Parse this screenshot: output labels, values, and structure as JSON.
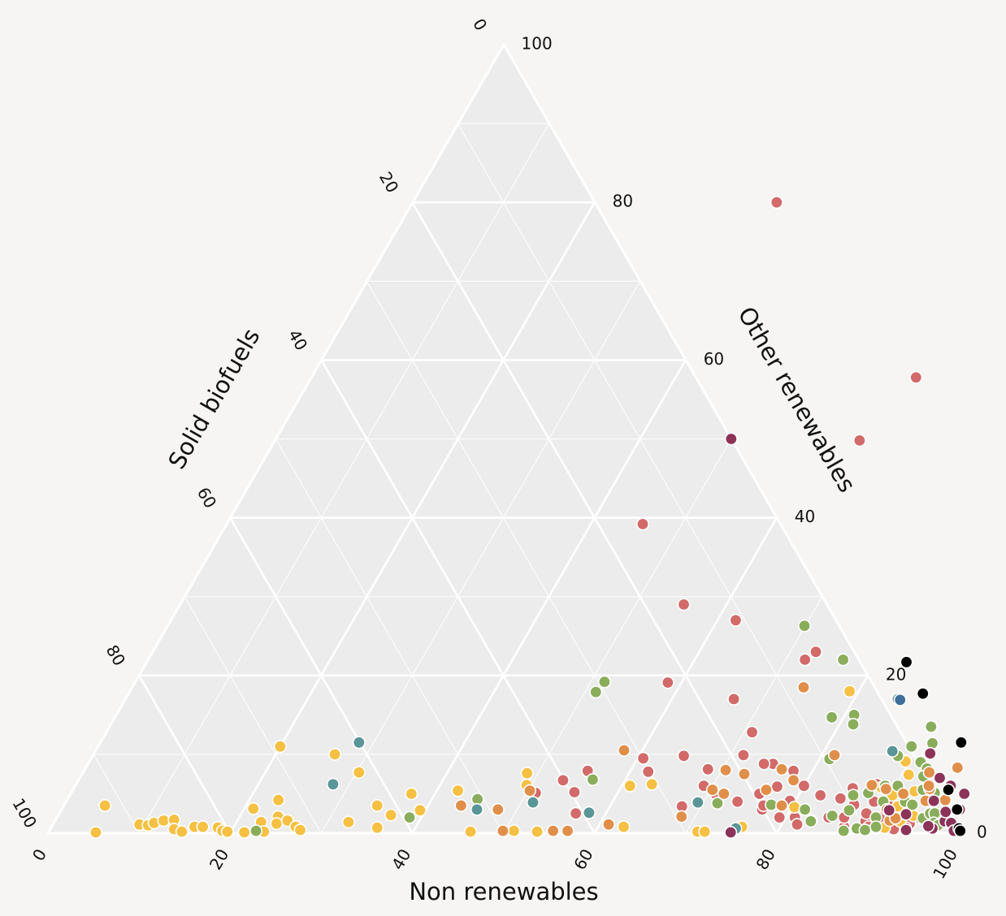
{
  "chart_data": {
    "type": "scatter",
    "subtype": "ternary",
    "title": "",
    "axes": {
      "bottom": {
        "title": "Non renewables",
        "ticks": [
          "0",
          "20",
          "40",
          "60",
          "80",
          "100"
        ]
      },
      "left": {
        "title": "Solid biofuels",
        "ticks": [
          "0",
          "20",
          "40",
          "60",
          "80",
          "100"
        ]
      },
      "right": {
        "title": "Other renewables",
        "ticks": [
          "0",
          "20",
          "40",
          "60",
          "80",
          "100"
        ]
      }
    },
    "point_encoding": [
      "non_renewables",
      "other_renewables"
    ],
    "grid": true,
    "palette": {
      "red": "#d26a6a",
      "yellow": "#f5c043",
      "green": "#8aad5c",
      "orange": "#e08f4a",
      "teal": "#5a9597",
      "plum": "#8c3359",
      "black": "#000000",
      "blue": "#3d6f99"
    },
    "series": [
      {
        "name": "red",
        "color": "#d26a6a",
        "points": [
          [
            40,
            80
          ],
          [
            66.4,
            57.8
          ],
          [
            64.2,
            49.8
          ],
          [
            45.7,
            39.2
          ],
          [
            55.3,
            29.0
          ],
          [
            62.0,
            27.0
          ],
          [
            72.8,
            23.0
          ],
          [
            72.1,
            22.0
          ],
          [
            58.5,
            19.1
          ],
          [
            66.8,
            17.0
          ],
          [
            70.9,
            12.8
          ],
          [
            75.2,
            8.8
          ],
          [
            74.2,
            8.8
          ],
          [
            77.1,
            5.9
          ],
          [
            75.6,
            5.0
          ],
          [
            76.9,
            3.0
          ],
          [
            78.8,
            3.5
          ],
          [
            69.0,
            6.0
          ],
          [
            73.7,
            4.0
          ],
          [
            76.8,
            3.5
          ],
          [
            81.0,
            2.0
          ],
          [
            64.9,
            9.8
          ],
          [
            71.4,
            9.9
          ],
          [
            79.3,
            2.0
          ],
          [
            62.0,
            7.8
          ],
          [
            60.6,
            9.5
          ],
          [
            68.4,
            8.1
          ],
          [
            77.9,
            7.9
          ],
          [
            80.0,
            6.0
          ],
          [
            79.4,
            4.1
          ],
          [
            53.2,
            6.7
          ],
          [
            55.2,
            5.2
          ],
          [
            51.0,
            5.1
          ],
          [
            55.3,
            7.9
          ],
          [
            67.9,
            3.4
          ],
          [
            70.8,
            5.0
          ],
          [
            56.7,
            2.5
          ],
          [
            81.7,
            1.1
          ],
          [
            83.0,
            1.6
          ],
          [
            84.7,
            2.0
          ],
          [
            87.0,
            0.8
          ],
          [
            89.0,
            1.5
          ],
          [
            86.4,
            2.0
          ],
          [
            88.6,
            2.5
          ],
          [
            90.5,
            2.0
          ],
          [
            92.1,
            1.5
          ],
          [
            94.0,
            1.2
          ],
          [
            92.6,
            0.5
          ],
          [
            89.7,
            0.8
          ],
          [
            86.7,
            3.6
          ],
          [
            88.7,
            4.0
          ],
          [
            93.8,
            0.7
          ],
          [
            91.3,
            2.6
          ],
          [
            84.8,
            4.4
          ],
          [
            87.9,
            6.2
          ],
          [
            93.2,
            2.7
          ],
          [
            94.8,
            1.9
          ],
          [
            82.4,
            4.8
          ],
          [
            85.5,
            5.7
          ],
          [
            90.4,
            3.9
          ]
        ]
      },
      {
        "name": "yellow",
        "color": "#f5c043",
        "points": [
          [
            4.5,
            3.5
          ],
          [
            5.2,
            0.1
          ],
          [
            9.5,
            1.1
          ],
          [
            10.5,
            1.0
          ],
          [
            11.0,
            1.3
          ],
          [
            11.9,
            1.6
          ],
          [
            13.0,
            1.7
          ],
          [
            13.6,
            0.5
          ],
          [
            14.6,
            0.2
          ],
          [
            15.7,
            0.8
          ],
          [
            16.6,
            0.8
          ],
          [
            18.3,
            0.7
          ],
          [
            19.0,
            0.3
          ],
          [
            19.6,
            0.2
          ],
          [
            21.0,
            3.1
          ],
          [
            21.5,
            0.1
          ],
          [
            22.7,
            1.4
          ],
          [
            23.6,
            0.2
          ],
          [
            24.2,
            2.1
          ],
          [
            24.5,
            1.2
          ],
          [
            25.5,
            1.6
          ],
          [
            26.8,
            0.8
          ],
          [
            27.5,
            0.4
          ],
          [
            23.2,
            4.2
          ],
          [
            20.0,
            11.0
          ],
          [
            26.5,
            10.0
          ],
          [
            30.3,
            7.7
          ],
          [
            32.3,
            1.4
          ],
          [
            34.4,
            3.5
          ],
          [
            35.8,
            0.7
          ],
          [
            36.5,
            2.3
          ],
          [
            37.4,
            5.0
          ],
          [
            39.4,
            2.9
          ],
          [
            42.3,
            5.4
          ],
          [
            46.3,
            0.2
          ],
          [
            48.8,
            7.6
          ],
          [
            49.5,
            6.1
          ],
          [
            50.0,
            0.2
          ],
          [
            51.0,
            0.3
          ],
          [
            53.6,
            0.2
          ],
          [
            60.9,
            6.0
          ],
          [
            62.8,
            0.8
          ],
          [
            63.2,
            6.2
          ],
          [
            71.2,
            0.2
          ],
          [
            72.0,
            0.2
          ],
          [
            75.8,
            0.8
          ],
          [
            79.0,
            18.0
          ],
          [
            80.3,
            3.3
          ],
          [
            92.8,
            1.5
          ],
          [
            91.5,
            0.7
          ],
          [
            90.3,
            4.8
          ],
          [
            93.9,
            2.2
          ],
          [
            89.6,
            9.1
          ],
          [
            91.6,
            3.4
          ],
          [
            92.5,
            5.3
          ],
          [
            88.6,
            5.8
          ],
          [
            90.8,
            7.4
          ]
        ]
      },
      {
        "name": "green",
        "color": "#8aad5c",
        "points": [
          [
            69.9,
            26.3
          ],
          [
            76.3,
            22.0
          ],
          [
            81.0,
            15.0
          ],
          [
            81.5,
            13.8
          ],
          [
            78.7,
            14.7
          ],
          [
            51.5,
            19.2
          ],
          [
            51.2,
            17.9
          ],
          [
            56.4,
            6.8
          ],
          [
            45.0,
            4.3
          ],
          [
            38.7,
            2.0
          ],
          [
            22.7,
            0.3
          ],
          [
            77.6,
            3.6
          ],
          [
            81.1,
            9.4
          ],
          [
            81.6,
            3.0
          ],
          [
            86.0,
            4.8
          ],
          [
            87.5,
            5.1
          ],
          [
            90.3,
            6.0
          ],
          [
            86.5,
            2.9
          ],
          [
            88.4,
            9.8
          ],
          [
            89.3,
            11.0
          ],
          [
            90.2,
            13.5
          ],
          [
            91.4,
            11.4
          ],
          [
            91.3,
            9.0
          ],
          [
            92.4,
            8.2
          ],
          [
            92.1,
            4.0
          ],
          [
            93.1,
            3.6
          ],
          [
            93.3,
            5.5
          ],
          [
            94.8,
            5.1
          ],
          [
            95.1,
            1.9
          ],
          [
            95.6,
            2.5
          ],
          [
            96.1,
            2.5
          ],
          [
            96.6,
            1.3
          ],
          [
            97.2,
            1.0
          ],
          [
            88.9,
            6.0
          ],
          [
            89.9,
            2.0
          ],
          [
            87.2,
            0.3
          ],
          [
            88.5,
            0.6
          ],
          [
            89.5,
            0.4
          ],
          [
            90.5,
            0.8
          ],
          [
            89.7,
            4.0
          ],
          [
            85.0,
            2.2
          ],
          [
            92.5,
            7.2
          ],
          [
            83.0,
            1.5
          ],
          [
            71.6,
            3.8
          ]
        ]
      },
      {
        "name": "orange",
        "color": "#e08f4a",
        "points": [
          [
            83.4,
            21.7
          ],
          [
            73.7,
            18.5
          ],
          [
            76.5,
            8.1
          ],
          [
            81.4,
            9.9
          ],
          [
            78.5,
            6.7
          ],
          [
            76.1,
            5.5
          ],
          [
            78.8,
            3.5
          ],
          [
            71.7,
            5.0
          ],
          [
            70.2,
            5.5
          ],
          [
            68.5,
            2.1
          ],
          [
            72.7,
            7.5
          ],
          [
            70.4,
            8.0
          ],
          [
            58.0,
            10.5
          ],
          [
            55.3,
            0.3
          ],
          [
            56.9,
            0.3
          ],
          [
            49.8,
            0.3
          ],
          [
            61.0,
            1.1
          ],
          [
            50.2,
            5.4
          ],
          [
            47.9,
            3.0
          ],
          [
            43.6,
            3.5
          ],
          [
            89.2,
            5.6
          ],
          [
            87.4,
            6.1
          ],
          [
            95.7,
            8.3
          ],
          [
            92.9,
            7.7
          ],
          [
            94.0,
            5.6
          ],
          [
            91.4,
            5.0
          ],
          [
            90.6,
            3.0
          ],
          [
            91.6,
            1.6
          ],
          [
            92.1,
            1.9
          ],
          [
            96.4,
            4.2
          ],
          [
            93.7,
            6.0
          ],
          [
            94.3,
            4.1
          ]
        ]
      },
      {
        "name": "teal",
        "color": "#5a9597",
        "points": [
          [
            28.4,
            11.5
          ],
          [
            28.2,
            6.2
          ],
          [
            51.3,
            3.9
          ],
          [
            45.6,
            3.0
          ],
          [
            58.1,
            2.6
          ],
          [
            69.4,
            3.9
          ],
          [
            75.2,
            0.6
          ],
          [
            87.5,
            10.4
          ],
          [
            84.8,
            17.0
          ]
        ]
      },
      {
        "name": "plum",
        "color": "#8c3359",
        "points": [
          [
            50.0,
            50.0
          ],
          [
            74.9,
            0.1
          ],
          [
            91.8,
            10.1
          ],
          [
            94.4,
            7.0
          ],
          [
            96.1,
            6.0
          ],
          [
            98.1,
            5.0
          ],
          [
            98.6,
            3.0
          ],
          [
            97.7,
            1.5
          ],
          [
            96.8,
            0.6
          ],
          [
            98.5,
            1.3
          ],
          [
            99.3,
            0.3
          ],
          [
            97.2,
            2.7
          ],
          [
            95.2,
            4.1
          ],
          [
            93.0,
            2.4
          ],
          [
            90.9,
            2.9
          ],
          [
            96.2,
            0.9
          ],
          [
            94.0,
            0.4
          ]
        ]
      },
      {
        "name": "black",
        "color": "#000000",
        "points": [
          [
            83.4,
            21.7
          ],
          [
            87.2,
            17.7
          ],
          [
            94.5,
            11.5
          ],
          [
            96.1,
            5.5
          ],
          [
            98.3,
            3.0
          ],
          [
            99.7,
            0.6
          ],
          [
            100.0,
            0.3
          ]
        ]
      },
      {
        "name": "blue",
        "color": "#3d6f99",
        "points": [
          [
            85.1,
            16.9
          ]
        ]
      }
    ]
  }
}
